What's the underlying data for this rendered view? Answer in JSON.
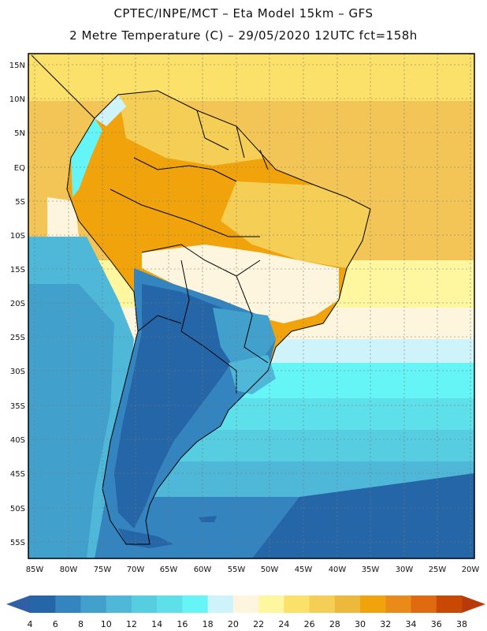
{
  "title": {
    "line1": "CPTEC/INPE/MCT –  Eta Model 15km – GFS",
    "line2": "2 Metre Temperature (C) – 29/05/2020 12UTC fct=158h"
  },
  "map": {
    "lat_labels": [
      "15N",
      "10N",
      "5N",
      "EQ",
      "5S",
      "10S",
      "15S",
      "20S",
      "25S",
      "30S",
      "35S",
      "40S",
      "45S",
      "50S",
      "55S"
    ],
    "lon_labels": [
      "85W",
      "80W",
      "75W",
      "70W",
      "65W",
      "60W",
      "55W",
      "50W",
      "45W",
      "40W",
      "35W",
      "30W",
      "25W",
      "20W"
    ]
  },
  "colorbar": {
    "labels": [
      "4",
      "6",
      "8",
      "10",
      "12",
      "14",
      "16",
      "18",
      "20",
      "22",
      "24",
      "26",
      "28",
      "30",
      "32",
      "34",
      "36",
      "38"
    ],
    "colors": [
      "#2566a8",
      "#3384bf",
      "#42a0cc",
      "#4fb8d8",
      "#56cde0",
      "#5ee0ea",
      "#66f5f7",
      "#cff3fb",
      "#fdf5dd",
      "#fff7a0",
      "#fbe06a",
      "#f5cf55",
      "#edb93a",
      "#f1a30c",
      "#ea8a19",
      "#e06a10",
      "#c84804"
    ],
    "low_color": "#2f5fa5",
    "high_color": "#b83a0a"
  }
}
